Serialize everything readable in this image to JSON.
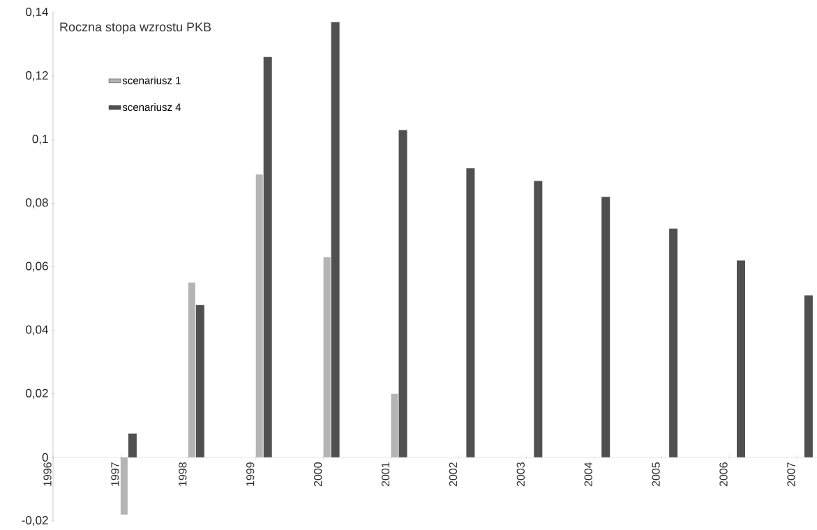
{
  "chart_data": {
    "type": "bar",
    "title": "Roczna stopa wzrostu PKB",
    "categories": [
      "1996",
      "1997",
      "1998",
      "1999",
      "2000",
      "2001",
      "2002",
      "2003",
      "2004",
      "2005",
      "2006",
      "2007"
    ],
    "series": [
      {
        "name": "scenariusz 1",
        "color": "#b4b4b4",
        "values": [
          null,
          -0.018,
          0.055,
          0.089,
          0.063,
          0.02,
          null,
          null,
          null,
          null,
          null,
          null
        ]
      },
      {
        "name": "scenariusz 4",
        "color": "#505050",
        "values": [
          null,
          0.0075,
          0.048,
          0.126,
          0.137,
          0.103,
          0.091,
          0.087,
          0.082,
          0.072,
          0.062,
          0.051
        ]
      }
    ],
    "ylim": [
      -0.02,
      0.14
    ],
    "yticks": [
      {
        "value": -0.02,
        "label": "-0,02"
      },
      0,
      {
        "value": 0.02,
        "label": "0,02"
      },
      {
        "value": 0.04,
        "label": "0,04"
      },
      {
        "value": 0.06,
        "label": "0,06"
      },
      {
        "value": 0.08,
        "label": "0,08"
      },
      {
        "value": 0.1,
        "label": "0,1"
      },
      {
        "value": 0.12,
        "label": "0,12"
      },
      {
        "value": 0.14,
        "label": "0,14"
      }
    ],
    "legend": "top left"
  }
}
